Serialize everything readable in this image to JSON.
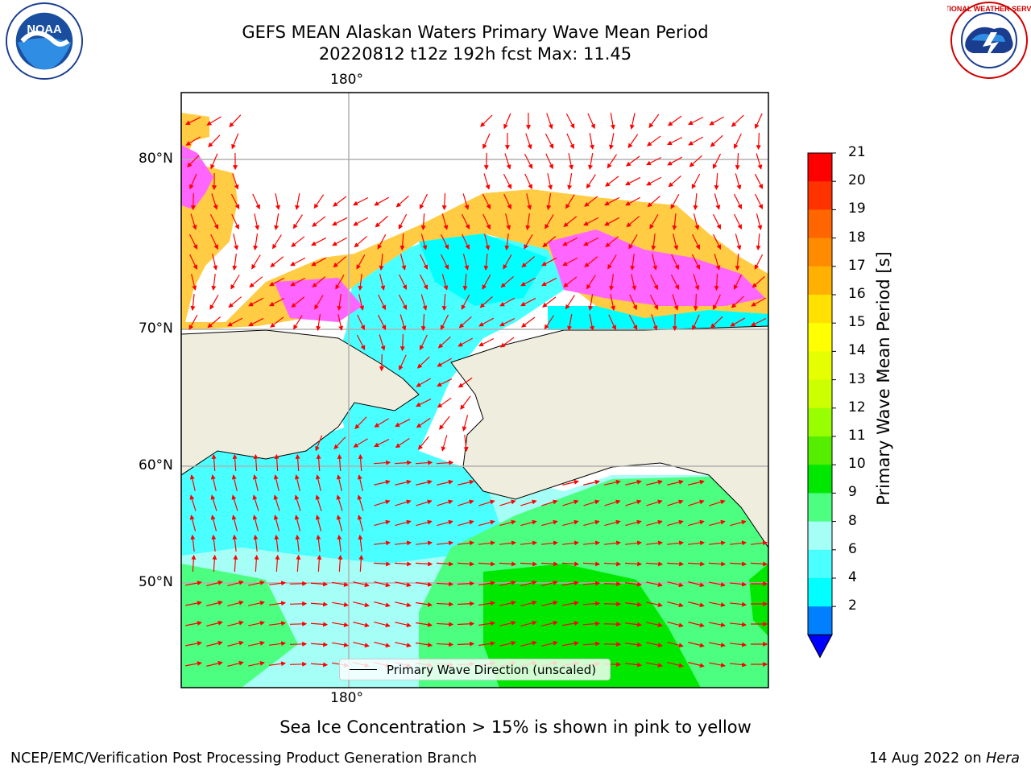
{
  "title_line1": "GEFS MEAN Alaskan Waters Primary Wave Mean Period",
  "title_line2": "20220812 t12z 192h fcst   Max: 11.45",
  "logos": {
    "left": {
      "icon": "noaa-logo",
      "text": "NOAA"
    },
    "right": {
      "icon": "nws-logo",
      "text": "NATIONAL WEATHER SERVICE"
    }
  },
  "map": {
    "lon_top_label": "180°",
    "lon_bottom_label": "180°",
    "lat_labels": [
      "80°N",
      "70°N",
      "60°N",
      "50°N"
    ],
    "colors": {
      "land": "#efeddd",
      "ocean_lt4": "#00ffff",
      "ocean_6_8": "#4affff",
      "ocean_8_9": "#a6fff6",
      "ocean_9_10": "#4cff80",
      "ocean_10_11": "#00e800",
      "ice_pink": "#ff66ff",
      "ice_yellow": "#ffcc44",
      "arrow": "#ff0000",
      "grid": "#b0b0b0"
    }
  },
  "legend": {
    "label": "Primary Wave Direction (unscaled)"
  },
  "colorbar": {
    "label": "Primary Wave Mean Period [s]",
    "ticks": [
      "21",
      "20",
      "19",
      "18",
      "17",
      "16",
      "15",
      "14",
      "13",
      "12",
      "11",
      "10",
      "9",
      "8",
      "6",
      "4",
      "2"
    ],
    "colors": [
      "#ff0000",
      "#ff3300",
      "#ff6600",
      "#ff8c00",
      "#ffb000",
      "#ffe000",
      "#ffff00",
      "#e6ff00",
      "#ccff00",
      "#99ff00",
      "#55ee00",
      "#00e800",
      "#4cff80",
      "#a6fff6",
      "#4affff",
      "#00ffff",
      "#0080ff"
    ],
    "extend_color": "#0000ff"
  },
  "footer": {
    "note": "Sea Ice Concentration > 15% is shown in pink to yellow",
    "left": "NCEP/EMC/Verification Post Processing Product Generation Branch",
    "right_prefix": "14 Aug 2022 on ",
    "right_machine": "Hera"
  }
}
